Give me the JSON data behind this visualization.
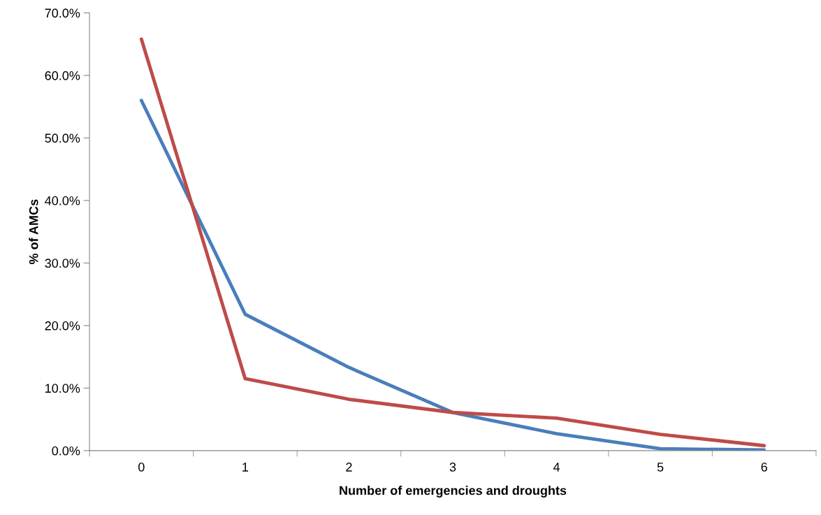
{
  "chart_data": {
    "type": "line",
    "xlabel": "Number of emergencies and droughts",
    "ylabel": "% of AMCs",
    "categories": [
      "0",
      "1",
      "2",
      "3",
      "4",
      "5",
      "6"
    ],
    "series": [
      {
        "color": "#4a7ebb",
        "values": [
          56.0,
          21.8,
          13.3,
          6.1,
          2.7,
          0.3,
          0.1
        ]
      },
      {
        "color": "#be4b48",
        "values": [
          65.8,
          11.5,
          8.2,
          6.1,
          5.2,
          2.6,
          0.8
        ]
      }
    ],
    "ylim": [
      0,
      70
    ],
    "yticks": [
      {
        "value": 0,
        "label": "0.0%"
      },
      {
        "value": 10,
        "label": "10.0%"
      },
      {
        "value": 20,
        "label": "20.0%"
      },
      {
        "value": 30,
        "label": "30.0%"
      },
      {
        "value": 40,
        "label": "40.0%"
      },
      {
        "value": 50,
        "label": "50.0%"
      },
      {
        "value": 60,
        "label": "60.0%"
      },
      {
        "value": 70,
        "label": "70.0%"
      }
    ],
    "grid": false,
    "marker": "none",
    "line_style": "solid"
  }
}
